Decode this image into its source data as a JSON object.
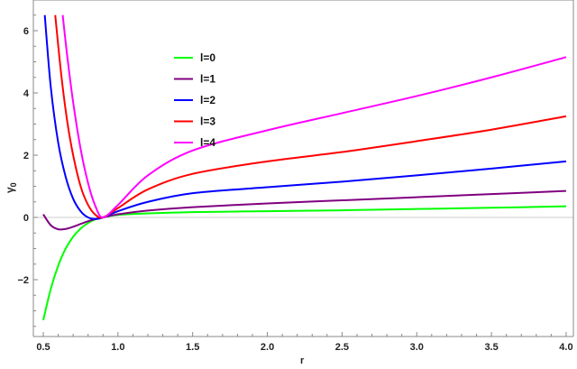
{
  "chart_data": {
    "type": "line",
    "title": "",
    "xlabel": "r",
    "ylabel": "γ0",
    "xlim": [
      0.48,
      4.02
    ],
    "ylim": [
      -3.8,
      6.9
    ],
    "grid": false,
    "legend_position": "upper-left-inside",
    "x_ticks": [
      "0.5",
      "1.0",
      "1.5",
      "2.0",
      "2.5",
      "3.0",
      "3.5",
      "4.0"
    ],
    "y_ticks": [
      "-2",
      "0",
      "2",
      "4",
      "6"
    ],
    "series": [
      {
        "name": "l=0",
        "color": "#00ff00",
        "x": [
          0.5,
          0.55,
          0.6,
          0.65,
          0.7,
          0.75,
          0.8,
          0.85,
          0.9,
          1.0,
          1.2,
          1.5,
          2.0,
          2.5,
          3.0,
          3.5,
          4.0
        ],
        "y": [
          -3.3,
          -2.3,
          -1.55,
          -1.0,
          -0.62,
          -0.36,
          -0.18,
          -0.06,
          0.0,
          0.08,
          0.13,
          0.17,
          0.2,
          0.23,
          0.27,
          0.31,
          0.36
        ]
      },
      {
        "name": "l=1",
        "color": "#800080",
        "x": [
          0.5,
          0.55,
          0.6,
          0.65,
          0.7,
          0.75,
          0.8,
          0.85,
          0.9,
          1.0,
          1.2,
          1.5,
          2.0,
          2.5,
          3.0,
          3.5,
          4.0
        ],
        "y": [
          0.1,
          -0.25,
          -0.38,
          -0.37,
          -0.3,
          -0.21,
          -0.12,
          -0.05,
          0.0,
          0.1,
          0.22,
          0.33,
          0.45,
          0.55,
          0.65,
          0.75,
          0.85
        ]
      },
      {
        "name": "l=2",
        "color": "#0000ff",
        "x": [
          0.51,
          0.55,
          0.6,
          0.65,
          0.7,
          0.75,
          0.8,
          0.85,
          0.9,
          1.0,
          1.2,
          1.5,
          2.0,
          2.5,
          3.0,
          3.5,
          4.0
        ],
        "y": [
          6.5,
          4.2,
          2.4,
          1.3,
          0.6,
          0.2,
          0.0,
          -0.05,
          0.0,
          0.2,
          0.5,
          0.78,
          0.97,
          1.15,
          1.35,
          1.57,
          1.8
        ]
      },
      {
        "name": "l=3",
        "color": "#ff0000",
        "x": [
          0.58,
          0.62,
          0.66,
          0.7,
          0.75,
          0.8,
          0.85,
          0.9,
          1.0,
          1.2,
          1.5,
          2.0,
          2.5,
          3.0,
          3.5,
          4.0
        ],
        "y": [
          6.5,
          4.6,
          3.1,
          2.0,
          1.0,
          0.4,
          0.08,
          0.0,
          0.3,
          0.9,
          1.4,
          1.8,
          2.1,
          2.45,
          2.82,
          3.25
        ]
      },
      {
        "name": "l=4",
        "color": "#ff00ff",
        "x": [
          0.63,
          0.66,
          0.7,
          0.75,
          0.8,
          0.85,
          0.9,
          1.0,
          1.2,
          1.5,
          2.0,
          2.5,
          3.0,
          3.5,
          4.0
        ],
        "y": [
          6.5,
          5.2,
          3.7,
          2.2,
          1.1,
          0.35,
          0.0,
          0.4,
          1.35,
          2.15,
          2.8,
          3.35,
          3.9,
          4.5,
          5.15
        ]
      }
    ]
  },
  "axes": {
    "xlabel": "r",
    "ylabel_main": "γ",
    "ylabel_sub": "0"
  },
  "legend": [
    {
      "label": "l=0",
      "color": "#00ff00"
    },
    {
      "label": "l=1",
      "color": "#800080"
    },
    {
      "label": "l=2",
      "color": "#0000ff"
    },
    {
      "label": "l=3",
      "color": "#ff0000"
    },
    {
      "label": "l=4",
      "color": "#ff00ff"
    }
  ]
}
